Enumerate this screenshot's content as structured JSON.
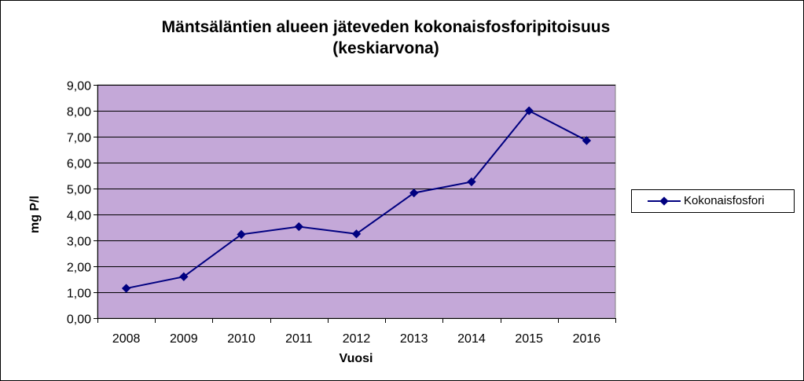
{
  "chart_data": {
    "type": "line",
    "title_lines": [
      "Mäntsäläntien alueen jäteveden kokonaisfosforipitoisuus",
      "(keskiarvona)"
    ],
    "xlabel": "Vuosi",
    "ylabel": "mg P/l",
    "categories": [
      "2008",
      "2009",
      "2010",
      "2011",
      "2012",
      "2013",
      "2014",
      "2015",
      "2016"
    ],
    "series": [
      {
        "name": "Kokonaisfosfori",
        "values": [
          1.15,
          1.6,
          3.23,
          3.53,
          3.25,
          4.83,
          5.26,
          8.0,
          6.85
        ]
      }
    ],
    "y_ticks": [
      "0,00",
      "1,00",
      "2,00",
      "3,00",
      "4,00",
      "5,00",
      "6,00",
      "7,00",
      "8,00",
      "9,00"
    ],
    "ylim": [
      0,
      9
    ],
    "grid": "horizontal",
    "legend_position": "right",
    "colors": {
      "plot_background": "#c4a8d8",
      "series": "#000080",
      "grid": "#000000"
    }
  }
}
